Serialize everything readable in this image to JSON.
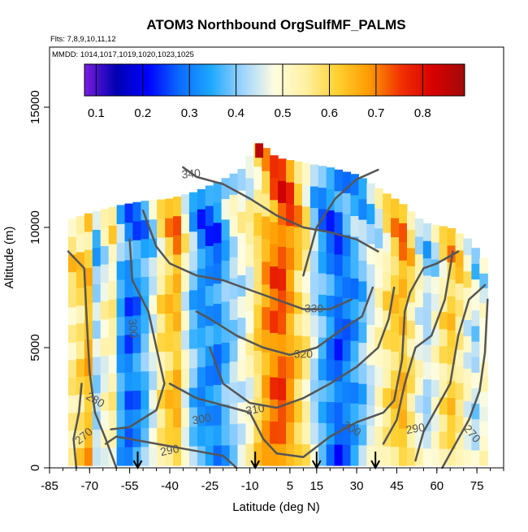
{
  "figure": {
    "title": "ATOM3 Northbound OrgSulfMF_PALMS",
    "flights_note": "Flts: 7,8,9,10,11,12",
    "dates_note": "MMDD: 1014,1017,1019,1020,1023,1025"
  },
  "chart_data": {
    "type": "heatmap",
    "title": "ATOM3 Northbound OrgSulfMF_PALMS",
    "xlabel": "Latitude (deg N)",
    "ylabel": "Altitude (m)",
    "xlim": [
      -85,
      85
    ],
    "ylim": [
      0,
      17500
    ],
    "xticks": [
      -85,
      -70,
      -55,
      -40,
      -25,
      -10,
      5,
      15,
      30,
      45,
      60,
      75
    ],
    "yticks": [
      0,
      5000,
      10000,
      15000
    ],
    "grid": false,
    "colorbar": {
      "placement": "top-inset",
      "range": [
        0.075,
        0.89
      ],
      "ticks": [
        0.1,
        0.2,
        0.3,
        0.4,
        0.5,
        0.6,
        0.7,
        0.8
      ],
      "colors": [
        "#7a1de0",
        "#0000b0",
        "#0000ff",
        "#0a6bff",
        "#1ea8ff",
        "#9fd4ff",
        "#fffde0",
        "#fff0a0",
        "#ffd030",
        "#ff9a00",
        "#f03000",
        "#d80000",
        "#a00a0a"
      ]
    },
    "curtain": {
      "lat_range": [
        -78,
        79
      ],
      "alt_top_profile": [
        [
          -78,
          10300
        ],
        [
          -70,
          10600
        ],
        [
          -60,
          10900
        ],
        [
          -50,
          11100
        ],
        [
          -40,
          11200
        ],
        [
          -30,
          11500
        ],
        [
          -20,
          12000
        ],
        [
          -12,
          12500
        ],
        [
          -8,
          13500
        ],
        [
          -6,
          13500
        ],
        [
          0,
          12900
        ],
        [
          10,
          12700
        ],
        [
          20,
          12500
        ],
        [
          30,
          12200
        ],
        [
          40,
          11500
        ],
        [
          47,
          11000
        ],
        [
          55,
          10200
        ],
        [
          65,
          10000
        ],
        [
          72,
          9500
        ],
        [
          79,
          8500
        ]
      ],
      "alt_bottom": 100,
      "column_values": [
        0.56,
        0.6,
        0.65,
        0.42,
        0.48,
        0.52,
        0.35,
        0.3,
        0.33,
        0.38,
        0.45,
        0.55,
        0.6,
        0.64,
        0.5,
        0.4,
        0.34,
        0.32,
        0.3,
        0.36,
        0.42,
        0.47,
        0.52,
        0.6,
        0.66,
        0.7,
        0.72,
        0.68,
        0.62,
        0.56,
        0.44,
        0.36,
        0.3,
        0.26,
        0.3,
        0.35,
        0.4,
        0.46,
        0.5,
        0.55,
        0.6,
        0.64,
        0.58,
        0.5,
        0.44,
        0.48,
        0.55,
        0.6,
        0.56,
        0.5,
        0.45,
        0.5
      ],
      "layer_offsets": [
        0.05,
        -0.04,
        0.02,
        0.07,
        -0.03,
        0.04,
        -0.06,
        0.02,
        0.08,
        -0.02,
        0.03,
        0.1,
        0.12,
        0.06
      ]
    },
    "contours": [
      {
        "label": "270",
        "points": [
          [
            -75,
            0
          ],
          [
            -76,
            1200
          ],
          [
            -74,
            2300
          ],
          [
            -73,
            3500
          ]
        ]
      },
      {
        "label": "280",
        "points": [
          [
            -60,
            0
          ],
          [
            -64,
            1200
          ],
          [
            -68,
            2300
          ],
          [
            -70,
            4000
          ],
          [
            -71,
            6000
          ],
          [
            -72,
            8300
          ],
          [
            -78,
            9000
          ]
        ]
      },
      {
        "label": "290",
        "points": [
          [
            -64,
            1000
          ],
          [
            -60,
            1300
          ],
          [
            -45,
            1000
          ],
          [
            -30,
            700
          ],
          [
            -20,
            500
          ],
          [
            -15,
            0
          ]
        ]
      },
      {
        "label": "300",
        "points": [
          [
            -40,
            3500
          ],
          [
            -30,
            2900
          ],
          [
            -20,
            2600
          ],
          [
            -10,
            2300
          ],
          [
            -5,
            1200
          ],
          [
            0,
            600
          ],
          [
            10,
            450
          ],
          [
            20,
            1300
          ],
          [
            30,
            1900
          ],
          [
            40,
            2300
          ],
          [
            44,
            2800
          ],
          [
            47,
            4500
          ],
          [
            48,
            6500
          ],
          [
            50,
            7300
          ],
          [
            55,
            8300
          ],
          [
            60,
            8500
          ],
          [
            68,
            9000
          ]
        ]
      },
      {
        "label": "300b",
        "points": [
          [
            -55,
            9500
          ],
          [
            -54,
            7800
          ],
          [
            -48,
            6500
          ],
          [
            -45,
            5000
          ],
          [
            -42,
            3500
          ],
          [
            -45,
            2400
          ],
          [
            -55,
            1700
          ],
          [
            -62,
            1600
          ]
        ]
      },
      {
        "label": "310",
        "points": [
          [
            -25,
            5000
          ],
          [
            -20,
            3500
          ],
          [
            -10,
            2700
          ],
          [
            0,
            2500
          ],
          [
            10,
            2900
          ],
          [
            20,
            3500
          ],
          [
            30,
            4200
          ],
          [
            38,
            5000
          ],
          [
            42,
            6200
          ],
          [
            44,
            7500
          ]
        ]
      },
      {
        "label": "320",
        "points": [
          [
            -30,
            6500
          ],
          [
            -25,
            6200
          ],
          [
            -15,
            5500
          ],
          [
            -5,
            5000
          ],
          [
            5,
            4700
          ],
          [
            15,
            5000
          ],
          [
            25,
            5800
          ],
          [
            32,
            6300
          ],
          [
            36,
            7500
          ]
        ]
      },
      {
        "label": "330",
        "points": [
          [
            -50,
            10700
          ],
          [
            -45,
            9200
          ],
          [
            -40,
            8500
          ],
          [
            -30,
            8000
          ],
          [
            -20,
            7800
          ],
          [
            -10,
            7400
          ],
          [
            0,
            7000
          ],
          [
            10,
            6600
          ],
          [
            20,
            6600
          ],
          [
            28,
            7000
          ]
        ]
      },
      {
        "label": "340",
        "points": [
          [
            -35,
            12500
          ],
          [
            -30,
            12100
          ],
          [
            -20,
            11800
          ],
          [
            -10,
            11200
          ],
          [
            0,
            10500
          ],
          [
            10,
            10000
          ],
          [
            20,
            9800
          ],
          [
            30,
            9500
          ],
          [
            38,
            9000
          ]
        ]
      },
      {
        "label": "",
        "points": [
          [
            10,
            8000
          ],
          [
            15,
            10000
          ],
          [
            22,
            11200
          ],
          [
            30,
            12000
          ],
          [
            38,
            12400
          ]
        ]
      },
      {
        "label": "",
        "points": [
          [
            40,
            1000
          ],
          [
            45,
            2000
          ],
          [
            48,
            3500
          ],
          [
            52,
            5000
          ],
          [
            58,
            5500
          ],
          [
            63,
            7000
          ],
          [
            66,
            9000
          ]
        ]
      },
      {
        "label": "",
        "points": [
          [
            52,
            300
          ],
          [
            55,
            1500
          ],
          [
            60,
            2500
          ],
          [
            65,
            3500
          ],
          [
            68,
            5500
          ],
          [
            72,
            7000
          ],
          [
            78,
            7600
          ]
        ]
      },
      {
        "label": "270",
        "points": [
          [
            62,
            0
          ],
          [
            66,
            800
          ],
          [
            72,
            2000
          ],
          [
            76,
            3200
          ],
          [
            78,
            4800
          ],
          [
            79,
            7000
          ]
        ]
      }
    ],
    "contour_label_positions": [
      {
        "text": "340",
        "at": [
          -32,
          12200
        ],
        "angle": -5
      },
      {
        "text": "330",
        "at": [
          14,
          6600
        ],
        "angle": 0
      },
      {
        "text": "320",
        "at": [
          10,
          4700
        ],
        "angle": 0
      },
      {
        "text": "310",
        "at": [
          -8,
          2400
        ],
        "angle": -10
      },
      {
        "text": "300",
        "at": [
          -54,
          5800
        ],
        "angle": 85
      },
      {
        "text": "300",
        "at": [
          -28,
          2000
        ],
        "angle": -10
      },
      {
        "text": "300",
        "at": [
          28,
          1600
        ],
        "angle": 30
      },
      {
        "text": "290",
        "at": [
          -40,
          700
        ],
        "angle": -12
      },
      {
        "text": "290",
        "at": [
          52,
          1600
        ],
        "angle": -10
      },
      {
        "text": "280",
        "at": [
          -68,
          2800
        ],
        "angle": 30
      },
      {
        "text": "270",
        "at": [
          -72,
          1300
        ],
        "angle": -40
      },
      {
        "text": "270",
        "at": [
          73,
          1400
        ],
        "angle": 50
      }
    ],
    "arrows_lat": [
      -52,
      -8,
      15,
      37
    ]
  }
}
